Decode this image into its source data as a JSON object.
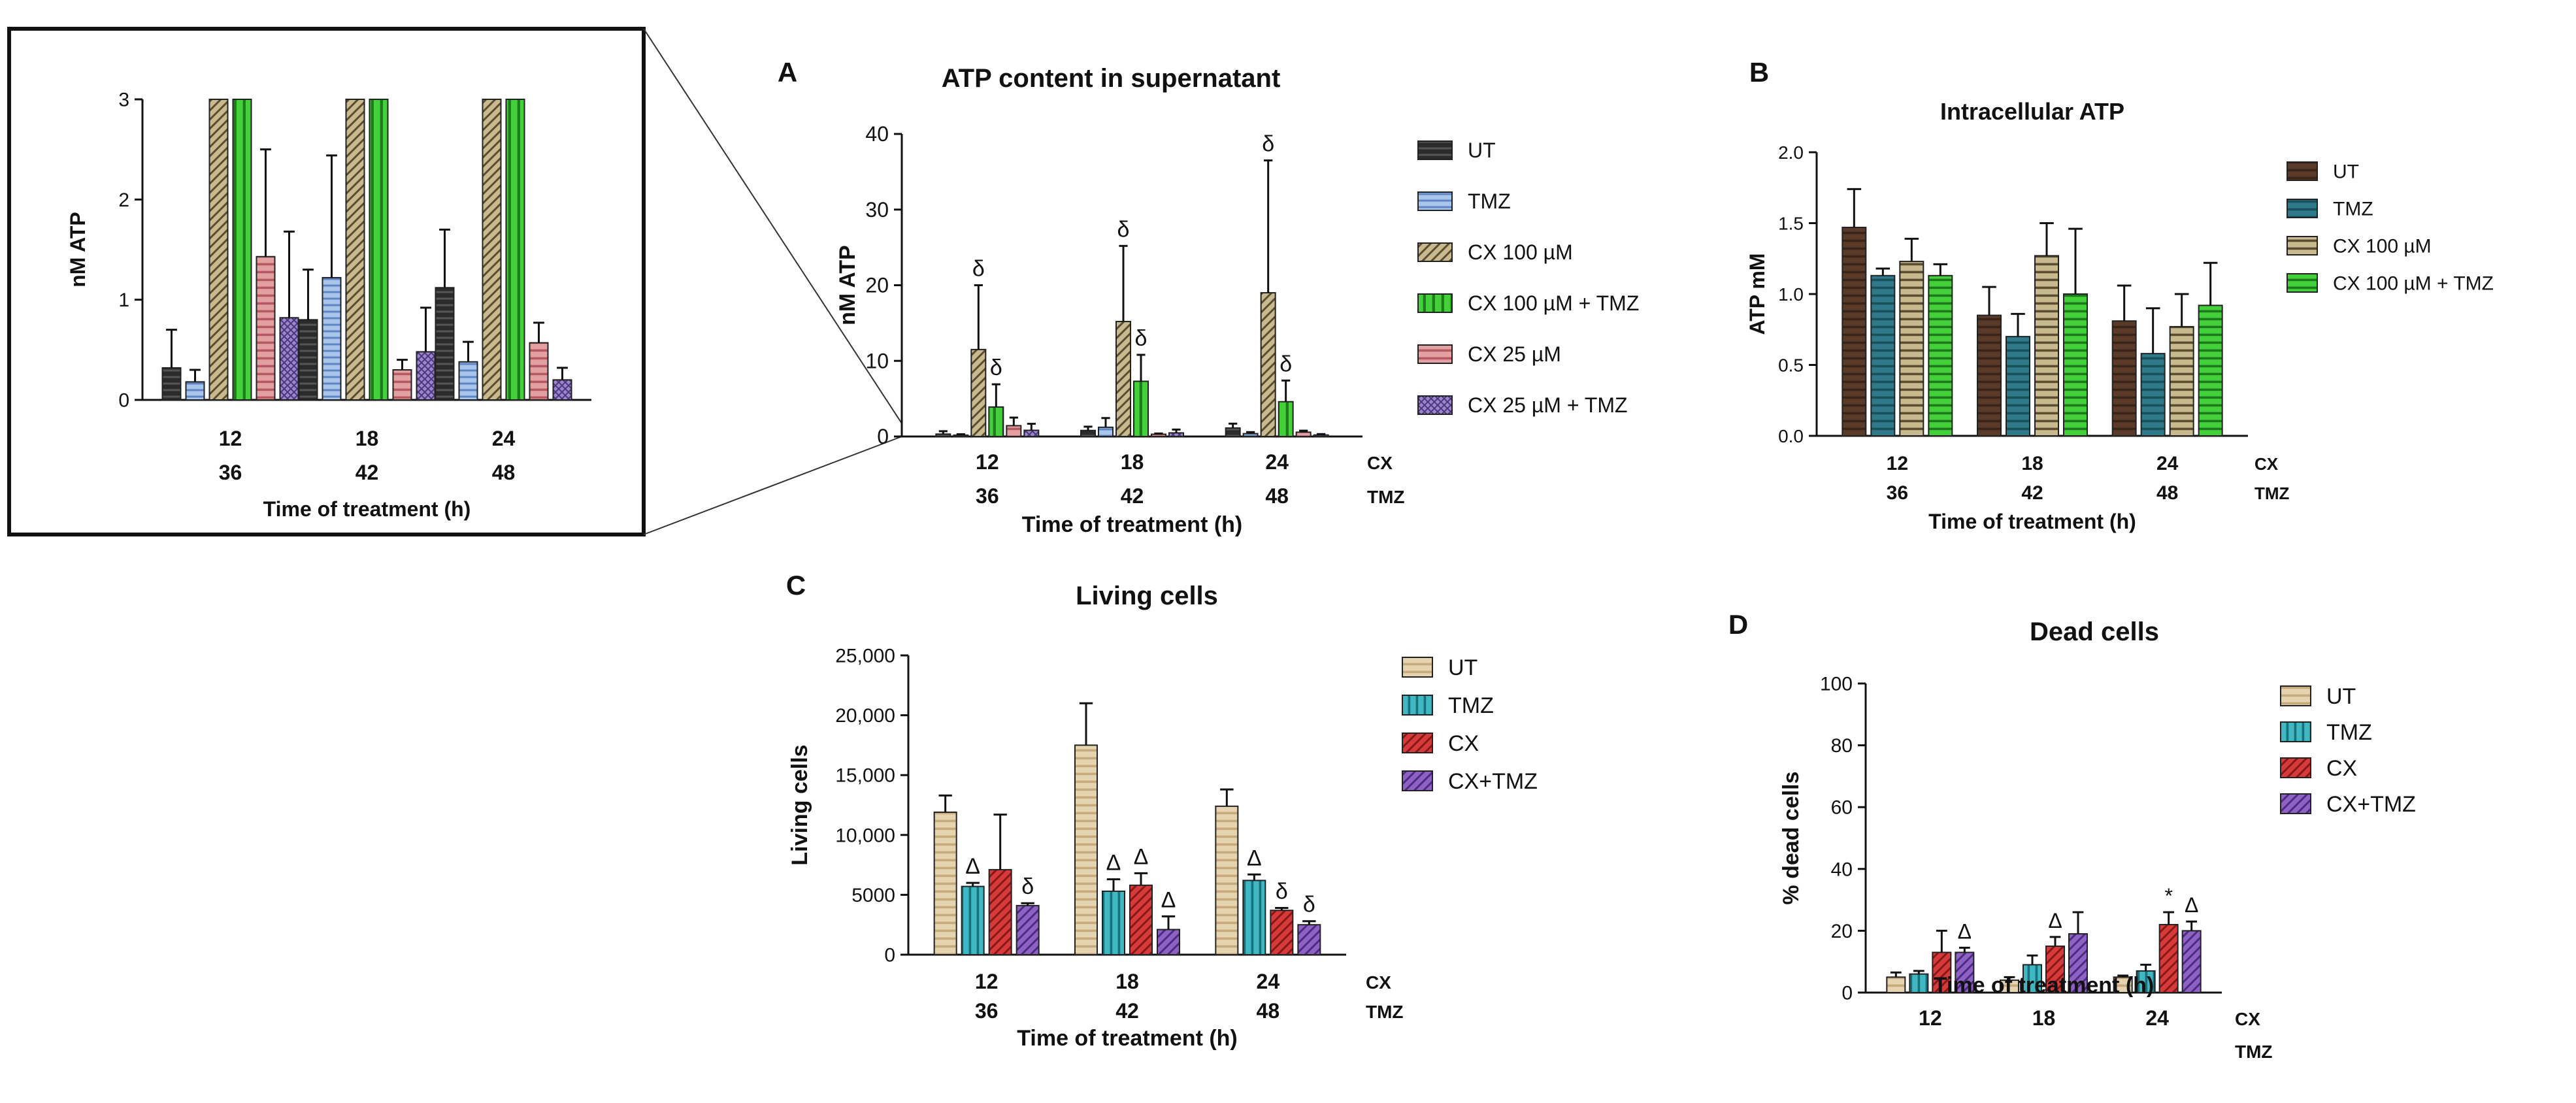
{
  "chart_data": [
    {
      "id": "inset",
      "type": "bar",
      "title": "",
      "xlabel": "Time of treatment (h)",
      "ylabel": "nM ATP",
      "ylim": [
        0,
        3
      ],
      "yticks": [
        "0",
        "1",
        "2",
        "3"
      ],
      "categories_cx": [
        "12",
        "18",
        "24"
      ],
      "categories_tmz": [
        "36",
        "42",
        "48"
      ],
      "series": [
        {
          "name": "UT",
          "values": [
            0.32,
            0.8,
            1.12
          ],
          "errors": [
            0.38,
            0.5,
            0.58
          ]
        },
        {
          "name": "TMZ",
          "values": [
            0.18,
            1.22,
            0.38
          ],
          "errors": [
            0.12,
            1.22,
            0.2
          ]
        },
        {
          "name": "CX 100 µM",
          "values": [
            11.5,
            15.2,
            19.0
          ],
          "errors": [
            8.5,
            10.0,
            17.5
          ]
        },
        {
          "name": "CX 100 µM + TMZ",
          "values": [
            3.9,
            7.3,
            4.6
          ],
          "errors": [
            3.0,
            3.5,
            2.8
          ]
        },
        {
          "name": "CX 25 µM",
          "values": [
            1.43,
            0.3,
            0.57
          ],
          "errors": [
            1.07,
            0.1,
            0.2
          ]
        },
        {
          "name": "CX 25 µM + TMZ",
          "values": [
            0.82,
            0.48,
            0.2
          ],
          "errors": [
            0.86,
            0.44,
            0.12
          ]
        }
      ]
    },
    {
      "id": "A",
      "type": "bar",
      "panel_label": "A",
      "title": "ATP content in supernatant",
      "xlabel": "Time of treatment (h)",
      "ylabel": "nM ATP",
      "ylim": [
        0,
        40
      ],
      "yticks": [
        "0",
        "10",
        "20",
        "30",
        "40"
      ],
      "categories_cx": [
        "12",
        "18",
        "24"
      ],
      "categories_tmz": [
        "36",
        "42",
        "48"
      ],
      "row_labels": [
        "CX",
        "TMZ"
      ],
      "legend": [
        "UT",
        "TMZ",
        "CX 100 µM",
        "CX 100 µM + TMZ",
        "CX 25 µM",
        "CX 25 µM + TMZ"
      ],
      "series": [
        {
          "name": "UT",
          "values": [
            0.32,
            0.8,
            1.12
          ],
          "errors": [
            0.38,
            0.5,
            0.58
          ]
        },
        {
          "name": "TMZ",
          "values": [
            0.18,
            1.22,
            0.38
          ],
          "errors": [
            0.12,
            1.22,
            0.2
          ]
        },
        {
          "name": "CX 100 µM",
          "values": [
            11.5,
            15.2,
            19.0
          ],
          "errors": [
            8.5,
            10.0,
            17.5
          ],
          "annot": [
            "δ",
            "δ",
            "δ"
          ]
        },
        {
          "name": "CX 100 µM + TMZ",
          "values": [
            3.9,
            7.3,
            4.6
          ],
          "errors": [
            3.0,
            3.5,
            2.8
          ],
          "annot": [
            "δ",
            "δ",
            "δ"
          ]
        },
        {
          "name": "CX 25 µM",
          "values": [
            1.43,
            0.3,
            0.57
          ],
          "errors": [
            1.07,
            0.1,
            0.2
          ]
        },
        {
          "name": "CX 25 µM + TMZ",
          "values": [
            0.82,
            0.48,
            0.2
          ],
          "errors": [
            0.86,
            0.44,
            0.12
          ]
        }
      ]
    },
    {
      "id": "B",
      "type": "bar",
      "panel_label": "B",
      "title": "Intracellular ATP",
      "xlabel": "Time of treatment (h)",
      "ylabel": "ATP mM",
      "ylim": [
        0,
        2
      ],
      "yticks": [
        "0.0",
        "0.5",
        "1.0",
        "1.5",
        "2.0"
      ],
      "categories_cx": [
        "12",
        "18",
        "24"
      ],
      "categories_tmz": [
        "36",
        "42",
        "48"
      ],
      "row_labels": [
        "CX",
        "TMZ"
      ],
      "legend": [
        "UT",
        "TMZ",
        "CX 100 µM",
        "CX 100 µM + TMZ"
      ],
      "series": [
        {
          "name": "UT",
          "values": [
            1.47,
            0.85,
            0.81
          ],
          "errors": [
            0.27,
            0.2,
            0.25
          ]
        },
        {
          "name": "TMZ",
          "values": [
            1.13,
            0.7,
            0.58
          ],
          "errors": [
            0.05,
            0.16,
            0.32
          ]
        },
        {
          "name": "CX 100 µM",
          "values": [
            1.23,
            1.27,
            0.77
          ],
          "errors": [
            0.16,
            0.23,
            0.23
          ]
        },
        {
          "name": "CX 100 µM + TMZ",
          "values": [
            1.13,
            1.0,
            0.92
          ],
          "errors": [
            0.08,
            0.46,
            0.3
          ]
        }
      ]
    },
    {
      "id": "C",
      "type": "bar",
      "panel_label": "C",
      "title": "Living cells",
      "xlabel": "Time of treatment (h)",
      "ylabel": "Living cells",
      "ylim": [
        0,
        25000
      ],
      "yticks": [
        "0",
        "5000",
        "10,000",
        "15,000",
        "20,000",
        "25,000"
      ],
      "categories_cx": [
        "12",
        "18",
        "24"
      ],
      "categories_tmz": [
        "36",
        "42",
        "48"
      ],
      "row_labels": [
        "CX",
        "TMZ"
      ],
      "legend": [
        "UT",
        "TMZ",
        "CX",
        "CX+TMZ"
      ],
      "series": [
        {
          "name": "UT",
          "values": [
            11900,
            17500,
            12400
          ],
          "errors": [
            1400,
            3500,
            1400
          ]
        },
        {
          "name": "TMZ",
          "values": [
            5700,
            5300,
            6200
          ],
          "errors": [
            300,
            1000,
            500
          ],
          "annot": [
            "Δ",
            "Δ",
            "Δ"
          ]
        },
        {
          "name": "CX",
          "values": [
            7100,
            5800,
            3700
          ],
          "errors": [
            4600,
            1000,
            200
          ],
          "annot": [
            "",
            "Δ",
            "δ"
          ]
        },
        {
          "name": "CX+TMZ",
          "values": [
            4100,
            2100,
            2500
          ],
          "errors": [
            200,
            1100,
            300
          ],
          "annot": [
            "δ",
            "Δ",
            "δ"
          ]
        }
      ]
    },
    {
      "id": "D",
      "type": "bar",
      "panel_label": "D",
      "title": "Dead cells",
      "xlabel": "Time of treatment (h)",
      "ylabel": "% dead cells",
      "ylim": [
        0,
        100
      ],
      "yticks": [
        "0",
        "20",
        "40",
        "60",
        "80",
        "100"
      ],
      "categories_cx": [
        "12",
        "18",
        "24"
      ],
      "categories_tmz": [],
      "row_labels": [
        "CX",
        "TMZ"
      ],
      "legend": [
        "UT",
        "TMZ",
        "CX",
        "CX+TMZ"
      ],
      "series": [
        {
          "name": "UT",
          "values": [
            5,
            4,
            5
          ],
          "errors": [
            1.5,
            1,
            0.5
          ]
        },
        {
          "name": "TMZ",
          "values": [
            6,
            9,
            7
          ],
          "errors": [
            1,
            3,
            2
          ]
        },
        {
          "name": "CX",
          "values": [
            13,
            15,
            22
          ],
          "errors": [
            7,
            3,
            4
          ],
          "annot": [
            "",
            "Δ",
            "*"
          ]
        },
        {
          "name": "CX+TMZ",
          "values": [
            13,
            19,
            20
          ],
          "errors": [
            1.5,
            7,
            3
          ],
          "annot": [
            "Δ",
            "",
            "Δ"
          ]
        }
      ]
    }
  ],
  "colors": {
    "A": [
      "#2b2b2b",
      "#a9c5ec",
      "#c8b98e",
      "#44d03a",
      "#e3a0a3",
      "#9a86c9"
    ],
    "B": [
      "#5a3b2a",
      "#2e7a8a",
      "#c8b98e",
      "#44d03a"
    ],
    "C": [
      "#e6d3b0",
      "#3fb8c4",
      "#d63a3a",
      "#8d62c4"
    ]
  }
}
